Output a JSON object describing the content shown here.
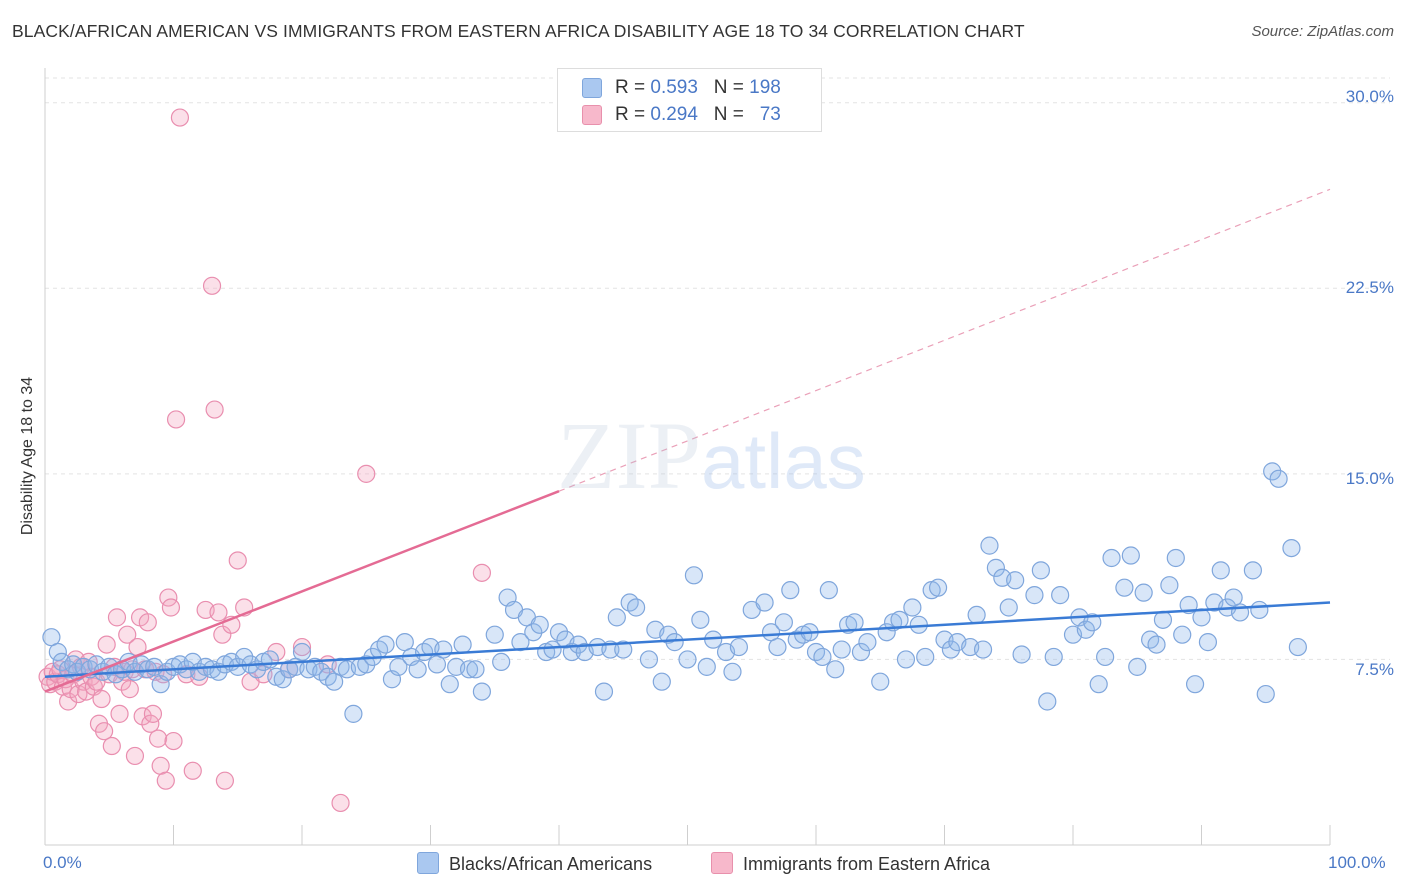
{
  "title": "BLACK/AFRICAN AMERICAN VS IMMIGRANTS FROM EASTERN AFRICA DISABILITY AGE 18 TO 34 CORRELATION CHART",
  "source": "Source: ZipAtlas.com",
  "watermark": {
    "zip": "ZIP",
    "atlas": "atlas"
  },
  "legend": {
    "rows": [
      {
        "r_label": "R =",
        "r_value": "0.593",
        "n_label": "N =",
        "n_value": "198",
        "color": "#aac8f0"
      },
      {
        "r_label": "R =",
        "r_value": "0.294",
        "n_label": "N =",
        "n_value": "73",
        "color": "#f7b8cb"
      }
    ]
  },
  "bottom_legend": {
    "series1": "Blacks/African Americans",
    "series2": "Immigrants from Eastern Africa"
  },
  "colors": {
    "blue_point": "#8fb6ea",
    "blue_line": "#3a7bd5",
    "pink_point": "#f4a6bf",
    "pink_line": "#e46b94",
    "tick": "#4a78c6"
  },
  "chart_data": {
    "type": "scatter",
    "title": "BLACK/AFRICAN AMERICAN VS IMMIGRANTS FROM EASTERN AFRICA DISABILITY AGE 18 TO 34 CORRELATION CHART",
    "xlabel": "",
    "ylabel": "Disability Age 18 to 34",
    "xlim": [
      0,
      100
    ],
    "ylim": [
      0,
      31
    ],
    "x_tick_labels": [
      "0.0%",
      "100.0%"
    ],
    "y_ticks": [
      7.5,
      15.0,
      22.5,
      30.0
    ],
    "y_tick_labels": [
      "7.5%",
      "15.0%",
      "22.5%",
      "30.0%"
    ],
    "grid": "horizontal dashed",
    "series": [
      {
        "name": "Blacks/African Americans",
        "color": "#8fb6ea",
        "trend": {
          "x": [
            0,
            100
          ],
          "y": [
            6.8,
            9.8
          ]
        },
        "points": [
          [
            0.5,
            8.4
          ],
          [
            1,
            7.8
          ],
          [
            1.3,
            7.4
          ],
          [
            1.8,
            7.1
          ],
          [
            2.2,
            7.3
          ],
          [
            2.5,
            7.0
          ],
          [
            3,
            7.2
          ],
          [
            3.5,
            7.1
          ],
          [
            4,
            7.3
          ],
          [
            4.5,
            7.0
          ],
          [
            5,
            7.2
          ],
          [
            5.5,
            6.9
          ],
          [
            6,
            7.1
          ],
          [
            6.5,
            7.4
          ],
          [
            7,
            7.0
          ],
          [
            7.5,
            7.3
          ],
          [
            8,
            7.1
          ],
          [
            8.5,
            7.2
          ],
          [
            9,
            6.5
          ],
          [
            9.5,
            7.0
          ],
          [
            10,
            7.2
          ],
          [
            10.5,
            7.3
          ],
          [
            11,
            7.1
          ],
          [
            11.5,
            7.4
          ],
          [
            12,
            7.0
          ],
          [
            12.5,
            7.2
          ],
          [
            13,
            7.1
          ],
          [
            13.5,
            7.0
          ],
          [
            14,
            7.3
          ],
          [
            14.5,
            7.4
          ],
          [
            15,
            7.2
          ],
          [
            15.5,
            7.6
          ],
          [
            16,
            7.3
          ],
          [
            16.5,
            7.1
          ],
          [
            17,
            7.4
          ],
          [
            17.5,
            7.5
          ],
          [
            18,
            6.8
          ],
          [
            18.5,
            6.7
          ],
          [
            19,
            7.1
          ],
          [
            19.5,
            7.2
          ],
          [
            20,
            7.8
          ],
          [
            20.5,
            7.1
          ],
          [
            21,
            7.2
          ],
          [
            21.5,
            7.0
          ],
          [
            22,
            6.8
          ],
          [
            22.5,
            6.6
          ],
          [
            23,
            7.2
          ],
          [
            23.5,
            7.1
          ],
          [
            24,
            5.3
          ],
          [
            24.5,
            7.2
          ],
          [
            25,
            7.3
          ],
          [
            25.5,
            7.6
          ],
          [
            26,
            7.9
          ],
          [
            26.5,
            8.1
          ],
          [
            27,
            6.7
          ],
          [
            27.5,
            7.2
          ],
          [
            28,
            8.2
          ],
          [
            28.5,
            7.6
          ],
          [
            29,
            7.1
          ],
          [
            29.5,
            7.8
          ],
          [
            30,
            8.0
          ],
          [
            30.5,
            7.3
          ],
          [
            31,
            7.9
          ],
          [
            31.5,
            6.5
          ],
          [
            32,
            7.2
          ],
          [
            32.5,
            8.1
          ],
          [
            33,
            7.1
          ],
          [
            33.5,
            7.1
          ],
          [
            34,
            6.2
          ],
          [
            35,
            8.5
          ],
          [
            35.5,
            7.4
          ],
          [
            36,
            10.0
          ],
          [
            36.5,
            9.5
          ],
          [
            37,
            8.2
          ],
          [
            37.5,
            9.2
          ],
          [
            38,
            8.6
          ],
          [
            38.5,
            8.9
          ],
          [
            39,
            7.8
          ],
          [
            39.5,
            7.9
          ],
          [
            40,
            8.6
          ],
          [
            40.5,
            8.3
          ],
          [
            41,
            7.8
          ],
          [
            41.5,
            8.1
          ],
          [
            42,
            7.8
          ],
          [
            43,
            8.0
          ],
          [
            43.5,
            6.2
          ],
          [
            44,
            7.9
          ],
          [
            44.5,
            9.2
          ],
          [
            45,
            7.9
          ],
          [
            45.5,
            9.8
          ],
          [
            46,
            9.6
          ],
          [
            47,
            7.5
          ],
          [
            47.5,
            8.7
          ],
          [
            48,
            6.6
          ],
          [
            48.5,
            8.5
          ],
          [
            49,
            8.2
          ],
          [
            50,
            7.5
          ],
          [
            50.5,
            10.9
          ],
          [
            51,
            9.1
          ],
          [
            51.5,
            7.2
          ],
          [
            52,
            8.3
          ],
          [
            53,
            7.8
          ],
          [
            53.5,
            7.0
          ],
          [
            54,
            8.0
          ],
          [
            55,
            9.5
          ],
          [
            56,
            9.8
          ],
          [
            56.5,
            8.6
          ],
          [
            57,
            8.0
          ],
          [
            57.5,
            9.0
          ],
          [
            58,
            10.3
          ],
          [
            58.5,
            8.3
          ],
          [
            59,
            8.5
          ],
          [
            59.5,
            8.6
          ],
          [
            60,
            7.8
          ],
          [
            60.5,
            7.6
          ],
          [
            61,
            10.3
          ],
          [
            61.5,
            7.1
          ],
          [
            62,
            7.9
          ],
          [
            62.5,
            8.9
          ],
          [
            63,
            9.0
          ],
          [
            63.5,
            7.8
          ],
          [
            64,
            8.2
          ],
          [
            65,
            6.6
          ],
          [
            65.5,
            8.6
          ],
          [
            66,
            9.0
          ],
          [
            66.5,
            9.1
          ],
          [
            67,
            7.5
          ],
          [
            67.5,
            9.6
          ],
          [
            68,
            8.9
          ],
          [
            68.5,
            7.6
          ],
          [
            69,
            10.3
          ],
          [
            69.5,
            10.4
          ],
          [
            70,
            8.3
          ],
          [
            70.5,
            7.9
          ],
          [
            71,
            8.2
          ],
          [
            72,
            8.0
          ],
          [
            72.5,
            9.3
          ],
          [
            73,
            7.9
          ],
          [
            73.5,
            12.1
          ],
          [
            74,
            11.2
          ],
          [
            74.5,
            10.8
          ],
          [
            75,
            9.6
          ],
          [
            75.5,
            10.7
          ],
          [
            76,
            7.7
          ],
          [
            77,
            10.1
          ],
          [
            77.5,
            11.1
          ],
          [
            78,
            5.8
          ],
          [
            78.5,
            7.6
          ],
          [
            79,
            10.1
          ],
          [
            80,
            8.5
          ],
          [
            80.5,
            9.2
          ],
          [
            81,
            8.7
          ],
          [
            81.5,
            9.0
          ],
          [
            82,
            6.5
          ],
          [
            82.5,
            7.6
          ],
          [
            83,
            11.6
          ],
          [
            84,
            10.4
          ],
          [
            84.5,
            11.7
          ],
          [
            85,
            7.2
          ],
          [
            85.5,
            10.2
          ],
          [
            86,
            8.3
          ],
          [
            86.5,
            8.1
          ],
          [
            87,
            9.1
          ],
          [
            87.5,
            10.5
          ],
          [
            88,
            11.6
          ],
          [
            88.5,
            8.5
          ],
          [
            89,
            9.7
          ],
          [
            89.5,
            6.5
          ],
          [
            90,
            9.2
          ],
          [
            90.5,
            8.2
          ],
          [
            91,
            9.8
          ],
          [
            91.5,
            11.1
          ],
          [
            92,
            9.6
          ],
          [
            92.5,
            10.0
          ],
          [
            93,
            9.4
          ],
          [
            94,
            11.1
          ],
          [
            94.5,
            9.5
          ],
          [
            95,
            6.1
          ],
          [
            95.5,
            15.1
          ],
          [
            96,
            14.8
          ],
          [
            97,
            12.0
          ],
          [
            97.5,
            8.0
          ]
        ]
      },
      {
        "name": "Immigrants from Eastern Africa",
        "color": "#f4a6bf",
        "trend": {
          "x": [
            0,
            40
          ],
          "y": [
            6.2,
            14.3
          ]
        },
        "trend_dashed": {
          "x": [
            40,
            100
          ],
          "y": [
            14.3,
            26.5
          ]
        },
        "points": [
          [
            0.2,
            6.8
          ],
          [
            0.4,
            6.5
          ],
          [
            0.6,
            7.0
          ],
          [
            0.8,
            6.6
          ],
          [
            1,
            6.9
          ],
          [
            1.2,
            7.1
          ],
          [
            1.4,
            6.4
          ],
          [
            1.6,
            6.7
          ],
          [
            1.8,
            5.8
          ],
          [
            2,
            6.3
          ],
          [
            2.2,
            6.9
          ],
          [
            2.4,
            7.5
          ],
          [
            2.6,
            6.1
          ],
          [
            2.8,
            7.2
          ],
          [
            3,
            6.6
          ],
          [
            3.2,
            6.2
          ],
          [
            3.4,
            7.4
          ],
          [
            3.6,
            6.8
          ],
          [
            3.8,
            6.4
          ],
          [
            4,
            6.6
          ],
          [
            4.2,
            4.9
          ],
          [
            4.4,
            5.9
          ],
          [
            4.6,
            4.6
          ],
          [
            4.8,
            8.1
          ],
          [
            5,
            6.9
          ],
          [
            5.2,
            4.0
          ],
          [
            5.4,
            7.2
          ],
          [
            5.6,
            9.2
          ],
          [
            5.8,
            5.3
          ],
          [
            6,
            6.6
          ],
          [
            6.2,
            7.0
          ],
          [
            6.4,
            8.5
          ],
          [
            6.6,
            6.3
          ],
          [
            6.8,
            7.1
          ],
          [
            7,
            3.6
          ],
          [
            7.2,
            8.0
          ],
          [
            7.4,
            9.2
          ],
          [
            7.6,
            5.2
          ],
          [
            7.8,
            7.1
          ],
          [
            8,
            9.0
          ],
          [
            8.2,
            4.9
          ],
          [
            8.4,
            5.3
          ],
          [
            8.6,
            7.0
          ],
          [
            8.8,
            4.3
          ],
          [
            9,
            3.2
          ],
          [
            9.2,
            6.9
          ],
          [
            9.4,
            2.6
          ],
          [
            9.6,
            10.0
          ],
          [
            9.8,
            9.6
          ],
          [
            10,
            4.2
          ],
          [
            10.2,
            17.2
          ],
          [
            10.5,
            29.4
          ],
          [
            11,
            6.9
          ],
          [
            11.5,
            3.0
          ],
          [
            12,
            6.8
          ],
          [
            12.5,
            9.5
          ],
          [
            13,
            22.6
          ],
          [
            13.2,
            17.6
          ],
          [
            13.5,
            9.4
          ],
          [
            13.8,
            8.5
          ],
          [
            14,
            2.6
          ],
          [
            14.5,
            8.9
          ],
          [
            15,
            11.5
          ],
          [
            15.5,
            9.6
          ],
          [
            16,
            6.6
          ],
          [
            17,
            6.9
          ],
          [
            18,
            7.8
          ],
          [
            19,
            7.1
          ],
          [
            20,
            8.0
          ],
          [
            22,
            7.3
          ],
          [
            25,
            15.0
          ],
          [
            23,
            1.7
          ],
          [
            34,
            11.0
          ]
        ]
      }
    ]
  }
}
